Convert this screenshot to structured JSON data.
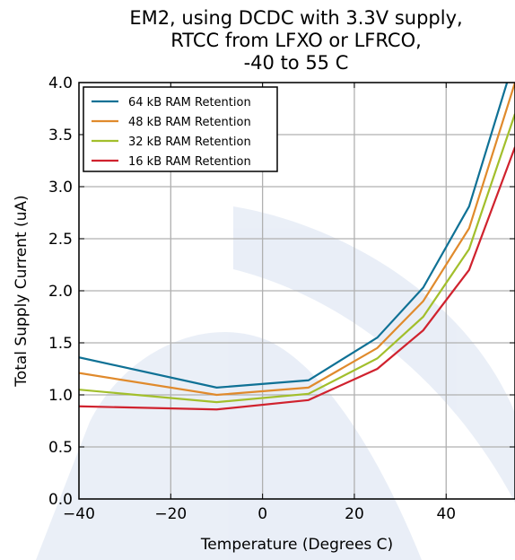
{
  "chart_data": {
    "type": "line",
    "title": [
      "EM2, using DCDC with 3.3V supply,",
      "RTCC from LFXO or LFRCO,",
      "-40 to 55 C"
    ],
    "xlabel": "Temperature (Degrees C)",
    "ylabel": "Total Supply Current (uA)",
    "xlim": [
      -40,
      55
    ],
    "ylim": [
      0.0,
      4.0
    ],
    "x_ticks": [
      -40,
      -20,
      0,
      20,
      40
    ],
    "x_tick_labels": [
      "−40",
      "−20",
      "0",
      "20",
      "40"
    ],
    "y_ticks": [
      0.0,
      0.5,
      1.0,
      1.5,
      2.0,
      2.5,
      3.0,
      3.5,
      4.0
    ],
    "y_tick_labels": [
      "0.0",
      "0.5",
      "1.0",
      "1.5",
      "2.0",
      "2.5",
      "3.0",
      "3.5",
      "4.0"
    ],
    "grid": true,
    "legend_position": "top-left",
    "x": [
      -40,
      -10,
      10,
      25,
      35,
      45,
      55
    ],
    "series": [
      {
        "name": "64 kB RAM Retention",
        "color": "#0f7195",
        "values": [
          1.36,
          1.07,
          1.14,
          1.55,
          2.03,
          2.81,
          4.25
        ]
      },
      {
        "name": "48 kB RAM Retention",
        "color": "#e08a2c",
        "values": [
          1.21,
          1.0,
          1.07,
          1.45,
          1.9,
          2.6,
          4.0
        ]
      },
      {
        "name": "32 kB RAM Retention",
        "color": "#a2bf2c",
        "values": [
          1.05,
          0.93,
          1.01,
          1.35,
          1.75,
          2.4,
          3.7
        ]
      },
      {
        "name": "16 kB RAM Retention",
        "color": "#d0222e",
        "values": [
          0.89,
          0.86,
          0.95,
          1.25,
          1.62,
          2.2,
          3.38
        ]
      }
    ]
  }
}
